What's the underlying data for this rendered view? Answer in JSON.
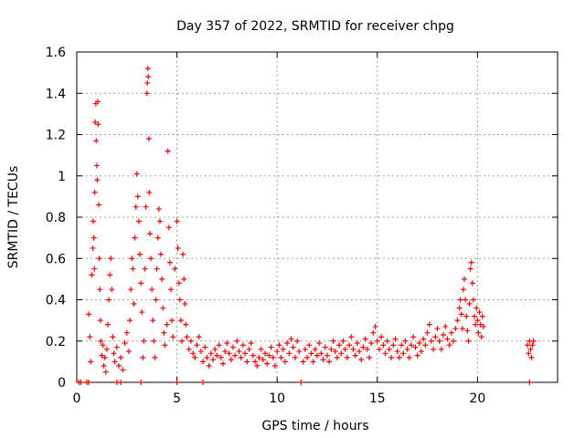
{
  "chart_data": {
    "type": "scatter",
    "title": "Day 357 of 2022, SRMTID for receiver chpg",
    "xlabel": "GPS time / hours",
    "ylabel": "SRMTID / TECUs",
    "xlim": [
      0,
      24
    ],
    "ylim": [
      0,
      1.6
    ],
    "xticks": [
      0,
      5,
      10,
      15,
      20
    ],
    "xtick_labels": [
      "0",
      "5",
      "10",
      "15",
      "20"
    ],
    "yticks": [
      0,
      0.2,
      0.4,
      0.6,
      0.8,
      1.0,
      1.2,
      1.4,
      1.6
    ],
    "ytick_labels": [
      "0",
      "0.2",
      "0.4",
      "0.6",
      "0.8",
      "1",
      "1.2",
      "1.4",
      "1.6"
    ],
    "grid": true,
    "marker": "+",
    "color": "#ff0000",
    "series": [
      {
        "name": "SRMTID",
        "points": [
          [
            0.1,
            0.0
          ],
          [
            0.2,
            0.0
          ],
          [
            0.5,
            0.0
          ],
          [
            0.6,
            0.0
          ],
          [
            2.0,
            0.0
          ],
          [
            2.2,
            0.0
          ],
          [
            3.2,
            0.0
          ],
          [
            5.0,
            0.0
          ],
          [
            6.3,
            0.0
          ],
          [
            11.2,
            0.0
          ],
          [
            22.6,
            0.0
          ],
          [
            0.6,
            0.33
          ],
          [
            0.65,
            0.22
          ],
          [
            0.7,
            0.1
          ],
          [
            0.75,
            0.52
          ],
          [
            0.8,
            0.65
          ],
          [
            0.82,
            0.78
          ],
          [
            0.85,
            0.7
          ],
          [
            0.88,
            0.55
          ],
          [
            0.9,
            0.92
          ],
          [
            0.92,
            1.26
          ],
          [
            0.95,
            1.35
          ],
          [
            0.97,
            1.17
          ],
          [
            1.0,
            1.05
          ],
          [
            1.02,
            0.98
          ],
          [
            1.05,
            1.36
          ],
          [
            1.07,
            1.25
          ],
          [
            1.1,
            0.86
          ],
          [
            1.12,
            0.6
          ],
          [
            1.15,
            0.45
          ],
          [
            1.18,
            0.3
          ],
          [
            1.2,
            0.2
          ],
          [
            1.25,
            0.13
          ],
          [
            1.3,
            0.18
          ],
          [
            1.35,
            0.08
          ],
          [
            1.4,
            0.12
          ],
          [
            1.45,
            0.05
          ],
          [
            1.5,
            0.16
          ],
          [
            1.55,
            0.28
          ],
          [
            1.6,
            0.4
          ],
          [
            1.65,
            0.52
          ],
          [
            1.7,
            0.6
          ],
          [
            1.75,
            0.45
          ],
          [
            1.8,
            0.22
          ],
          [
            1.85,
            0.14
          ],
          [
            1.9,
            0.1
          ],
          [
            2.0,
            0.17
          ],
          [
            2.1,
            0.08
          ],
          [
            2.2,
            0.12
          ],
          [
            2.3,
            0.06
          ],
          [
            2.4,
            0.19
          ],
          [
            2.5,
            0.24
          ],
          [
            2.6,
            0.15
          ],
          [
            2.65,
            0.3
          ],
          [
            2.7,
            0.45
          ],
          [
            2.75,
            0.6
          ],
          [
            2.8,
            0.55
          ],
          [
            2.85,
            0.38
          ],
          [
            2.9,
            0.7
          ],
          [
            2.95,
            0.85
          ],
          [
            3.0,
            1.01
          ],
          [
            3.05,
            0.9
          ],
          [
            3.1,
            0.78
          ],
          [
            3.15,
            0.62
          ],
          [
            3.2,
            0.48
          ],
          [
            3.25,
            0.34
          ],
          [
            3.3,
            0.12
          ],
          [
            3.35,
            0.2
          ],
          [
            3.4,
            0.55
          ],
          [
            3.45,
            0.85
          ],
          [
            3.5,
            1.4
          ],
          [
            3.52,
            1.45
          ],
          [
            3.55,
            1.52
          ],
          [
            3.57,
            1.48
          ],
          [
            3.6,
            1.18
          ],
          [
            3.62,
            0.92
          ],
          [
            3.65,
            0.72
          ],
          [
            3.7,
            0.6
          ],
          [
            3.75,
            0.45
          ],
          [
            3.8,
            0.3
          ],
          [
            3.85,
            0.2
          ],
          [
            3.9,
            0.12
          ],
          [
            3.95,
            0.4
          ],
          [
            4.0,
            0.55
          ],
          [
            4.05,
            0.7
          ],
          [
            4.1,
            0.84
          ],
          [
            4.15,
            0.78
          ],
          [
            4.2,
            0.62
          ],
          [
            4.25,
            0.5
          ],
          [
            4.3,
            0.36
          ],
          [
            4.35,
            0.24
          ],
          [
            4.4,
            0.18
          ],
          [
            4.5,
            0.28
          ],
          [
            4.55,
            1.12
          ],
          [
            4.6,
            0.75
          ],
          [
            4.65,
            0.58
          ],
          [
            4.7,
            0.45
          ],
          [
            4.75,
            0.3
          ],
          [
            4.8,
            0.22
          ],
          [
            4.9,
            0.55
          ],
          [
            5.0,
            0.78
          ],
          [
            5.05,
            0.65
          ],
          [
            5.1,
            0.48
          ],
          [
            5.15,
            0.4
          ],
          [
            5.2,
            0.3
          ],
          [
            5.25,
            0.2
          ],
          [
            5.3,
            0.62
          ],
          [
            5.35,
            0.5
          ],
          [
            5.4,
            0.38
          ],
          [
            5.45,
            0.28
          ],
          [
            5.5,
            0.22
          ],
          [
            5.6,
            0.16
          ],
          [
            5.7,
            0.2
          ],
          [
            5.8,
            0.14
          ],
          [
            5.9,
            0.12
          ],
          [
            6.0,
            0.18
          ],
          [
            6.1,
            0.22
          ],
          [
            6.2,
            0.15
          ],
          [
            6.3,
            0.1
          ],
          [
            6.4,
            0.17
          ],
          [
            6.5,
            0.12
          ],
          [
            6.6,
            0.08
          ],
          [
            6.7,
            0.14
          ],
          [
            6.8,
            0.11
          ],
          [
            6.9,
            0.16
          ],
          [
            7.0,
            0.13
          ],
          [
            7.1,
            0.18
          ],
          [
            7.2,
            0.12
          ],
          [
            7.3,
            0.09
          ],
          [
            7.4,
            0.15
          ],
          [
            7.5,
            0.19
          ],
          [
            7.6,
            0.14
          ],
          [
            7.7,
            0.11
          ],
          [
            7.8,
            0.17
          ],
          [
            7.9,
            0.13
          ],
          [
            8.0,
            0.2
          ],
          [
            8.1,
            0.15
          ],
          [
            8.2,
            0.12
          ],
          [
            8.3,
            0.18
          ],
          [
            8.4,
            0.14
          ],
          [
            8.5,
            0.1
          ],
          [
            8.6,
            0.16
          ],
          [
            8.7,
            0.19
          ],
          [
            8.8,
            0.13
          ],
          [
            8.9,
            0.1
          ],
          [
            9.0,
            0.08
          ],
          [
            9.1,
            0.12
          ],
          [
            9.2,
            0.16
          ],
          [
            9.3,
            0.11
          ],
          [
            9.4,
            0.14
          ],
          [
            9.5,
            0.09
          ],
          [
            9.6,
            0.13
          ],
          [
            9.7,
            0.17
          ],
          [
            9.8,
            0.12
          ],
          [
            9.9,
            0.08
          ],
          [
            10.0,
            0.15
          ],
          [
            10.1,
            0.18
          ],
          [
            10.2,
            0.12
          ],
          [
            10.3,
            0.16
          ],
          [
            10.4,
            0.1
          ],
          [
            10.5,
            0.19
          ],
          [
            10.6,
            0.14
          ],
          [
            10.7,
            0.21
          ],
          [
            10.8,
            0.17
          ],
          [
            10.9,
            0.12
          ],
          [
            11.0,
            0.2
          ],
          [
            11.1,
            0.15
          ],
          [
            11.3,
            0.1
          ],
          [
            11.4,
            0.16
          ],
          [
            11.5,
            0.12
          ],
          [
            11.6,
            0.18
          ],
          [
            11.7,
            0.14
          ],
          [
            11.8,
            0.1
          ],
          [
            11.9,
            0.16
          ],
          [
            12.0,
            0.13
          ],
          [
            12.1,
            0.19
          ],
          [
            12.2,
            0.14
          ],
          [
            12.3,
            0.11
          ],
          [
            12.4,
            0.17
          ],
          [
            12.5,
            0.13
          ],
          [
            12.6,
            0.1
          ],
          [
            12.7,
            0.16
          ],
          [
            12.8,
            0.2
          ],
          [
            12.9,
            0.15
          ],
          [
            13.0,
            0.12
          ],
          [
            13.1,
            0.18
          ],
          [
            13.2,
            0.14
          ],
          [
            13.3,
            0.2
          ],
          [
            13.4,
            0.16
          ],
          [
            13.5,
            0.12
          ],
          [
            13.6,
            0.18
          ],
          [
            13.7,
            0.22
          ],
          [
            13.8,
            0.16
          ],
          [
            13.9,
            0.13
          ],
          [
            14.0,
            0.19
          ],
          [
            14.1,
            0.15
          ],
          [
            14.2,
            0.11
          ],
          [
            14.3,
            0.17
          ],
          [
            14.4,
            0.21
          ],
          [
            14.5,
            0.16
          ],
          [
            14.6,
            0.12
          ],
          [
            14.7,
            0.19
          ],
          [
            14.8,
            0.24
          ],
          [
            14.9,
            0.27
          ],
          [
            15.0,
            0.2
          ],
          [
            15.1,
            0.16
          ],
          [
            15.2,
            0.22
          ],
          [
            15.3,
            0.18
          ],
          [
            15.4,
            0.14
          ],
          [
            15.5,
            0.2
          ],
          [
            15.6,
            0.16
          ],
          [
            15.7,
            0.12
          ],
          [
            15.8,
            0.18
          ],
          [
            15.9,
            0.21
          ],
          [
            16.0,
            0.15
          ],
          [
            16.1,
            0.12
          ],
          [
            16.2,
            0.18
          ],
          [
            16.3,
            0.14
          ],
          [
            16.4,
            0.2
          ],
          [
            16.5,
            0.16
          ],
          [
            16.6,
            0.12
          ],
          [
            16.7,
            0.18
          ],
          [
            16.8,
            0.22
          ],
          [
            16.9,
            0.17
          ],
          [
            17.0,
            0.13
          ],
          [
            17.1,
            0.19
          ],
          [
            17.2,
            0.15
          ],
          [
            17.3,
            0.21
          ],
          [
            17.4,
            0.18
          ],
          [
            17.5,
            0.24
          ],
          [
            17.6,
            0.28
          ],
          [
            17.7,
            0.2
          ],
          [
            17.8,
            0.16
          ],
          [
            17.9,
            0.22
          ],
          [
            18.0,
            0.26
          ],
          [
            18.1,
            0.2
          ],
          [
            18.2,
            0.16
          ],
          [
            18.3,
            0.23
          ],
          [
            18.4,
            0.27
          ],
          [
            18.5,
            0.21
          ],
          [
            18.6,
            0.18
          ],
          [
            18.7,
            0.24
          ],
          [
            18.8,
            0.2
          ],
          [
            18.9,
            0.26
          ],
          [
            19.0,
            0.3
          ],
          [
            19.1,
            0.36
          ],
          [
            19.15,
            0.4
          ],
          [
            19.2,
            0.33
          ],
          [
            19.25,
            0.26
          ],
          [
            19.3,
            0.45
          ],
          [
            19.35,
            0.5
          ],
          [
            19.4,
            0.4
          ],
          [
            19.45,
            0.32
          ],
          [
            19.5,
            0.25
          ],
          [
            19.55,
            0.2
          ],
          [
            19.6,
            0.38
          ],
          [
            19.65,
            0.55
          ],
          [
            19.7,
            0.58
          ],
          [
            19.75,
            0.48
          ],
          [
            19.8,
            0.4
          ],
          [
            19.85,
            0.32
          ],
          [
            19.9,
            0.28
          ],
          [
            19.95,
            0.36
          ],
          [
            20.0,
            0.3
          ],
          [
            20.05,
            0.24
          ],
          [
            20.1,
            0.34
          ],
          [
            20.15,
            0.28
          ],
          [
            20.2,
            0.22
          ],
          [
            20.25,
            0.32
          ],
          [
            20.3,
            0.27
          ],
          [
            22.5,
            0.18
          ],
          [
            22.55,
            0.14
          ],
          [
            22.6,
            0.2
          ],
          [
            22.65,
            0.16
          ],
          [
            22.7,
            0.12
          ],
          [
            22.75,
            0.18
          ],
          [
            22.8,
            0.2
          ]
        ]
      }
    ]
  }
}
